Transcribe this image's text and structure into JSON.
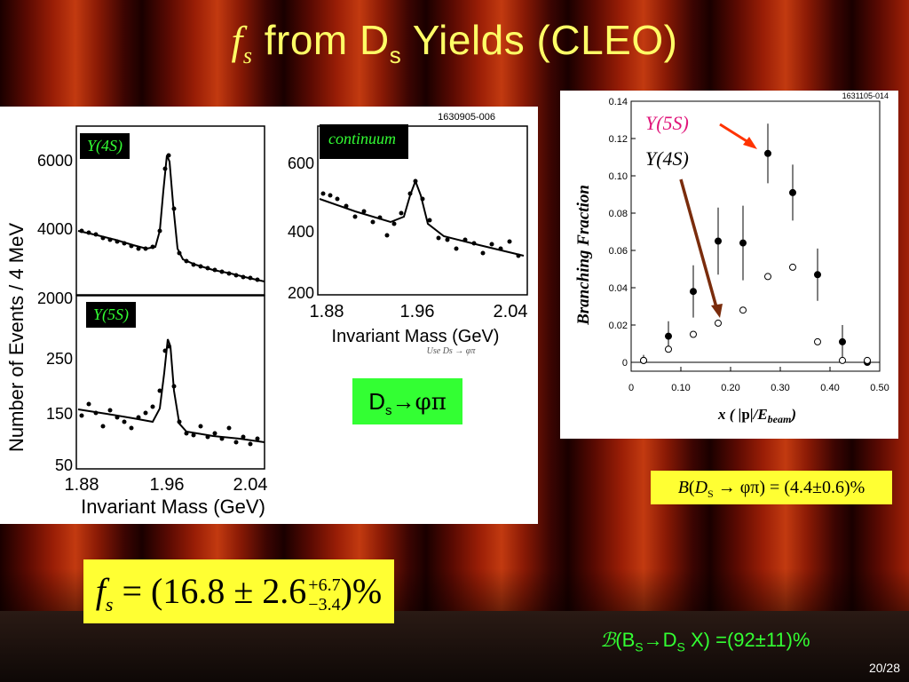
{
  "title": {
    "fs_symbol": "f",
    "fs_sub": "s",
    "text_before": "from D",
    "text_sub": "s",
    "text_after": "Yields (CLEO)"
  },
  "left_panel": {
    "figure_id": "1630905-006",
    "y_axis_label": "Number of Events / 4 MeV",
    "x_axis_label": "Invariant Mass (GeV)",
    "x_ticks": [
      "1.88",
      "1.96",
      "2.04"
    ],
    "overlay_note": "Use Ds → φπ",
    "tags": {
      "y4s": "Y(4S)",
      "y5s": "Y(5S)",
      "continuum": "continuum"
    },
    "y4s_ticks": [
      "6000",
      "4000",
      "2000"
    ],
    "y5s_ticks": [
      "250",
      "150",
      "50"
    ],
    "cont_ticks": [
      "600",
      "400",
      "200"
    ]
  },
  "ds_box": {
    "prefix": "D",
    "sub": "s",
    "arrow": "→",
    "rest": "φπ"
  },
  "right_panel": {
    "figure_id": "1631105-014",
    "y_axis_label": "Branching Fraction",
    "x_axis_label_pre": "x ( |",
    "x_axis_label_p": "p",
    "x_axis_label_mid": "|/E",
    "x_axis_label_sub": "beam",
    "x_axis_label_post": ")",
    "y_ticks": [
      "0.14",
      "0.12",
      "0.10",
      "0.08",
      "0.06",
      "0.04",
      "0.02",
      "0"
    ],
    "x_ticks": [
      "0",
      "0.10",
      "0.20",
      "0.30",
      "0.40",
      "0.50"
    ],
    "label_y5s": "Y(5S)",
    "label_y4s": "Y(4S)",
    "y5s_color": "#e0157a",
    "arrow_y5s_color": "#ff3300",
    "arrow_y4s_color": "#7a2c0c"
  },
  "chart_data": [
    {
      "type": "scatter",
      "title": "",
      "xlabel": "x ( |p|/E_beam )",
      "ylabel": "Branching Fraction",
      "xlim": [
        0,
        0.5
      ],
      "ylim": [
        0,
        0.14
      ],
      "series": [
        {
          "name": "Y(5S)",
          "marker": "filled",
          "x": [
            0.025,
            0.075,
            0.125,
            0.175,
            0.225,
            0.275,
            0.325,
            0.375,
            0.425,
            0.475
          ],
          "y": [
            0.001,
            0.014,
            0.038,
            0.065,
            0.064,
            0.112,
            0.091,
            0.047,
            0.011,
            0.0
          ],
          "err": [
            0.003,
            0.008,
            0.014,
            0.018,
            0.02,
            0.016,
            0.015,
            0.014,
            0.009,
            0.002
          ]
        },
        {
          "name": "Y(4S)",
          "marker": "open",
          "x": [
            0.025,
            0.075,
            0.125,
            0.175,
            0.225,
            0.275,
            0.325,
            0.375,
            0.425,
            0.475
          ],
          "y": [
            0.001,
            0.007,
            0.015,
            0.021,
            0.028,
            0.046,
            0.051,
            0.011,
            0.001,
            0.001
          ]
        }
      ]
    }
  ],
  "bf_box": {
    "B": "B",
    "open": "(",
    "D": "D",
    "S": "S",
    "decay": " → φπ) = (4.4±0.6)%"
  },
  "fs_box": {
    "f": "f",
    "s": "s",
    "eq": "= (16.8 ± 2.6",
    "up": "+6.7",
    "down": "−3.4",
    "end": ")%"
  },
  "bsds": {
    "script_b": "ℬ",
    "open": "(B",
    "s1": "S",
    "arrow": "→D",
    "s2": "S",
    "rest": " X) =(92±11)%"
  },
  "page_number": "20/28"
}
